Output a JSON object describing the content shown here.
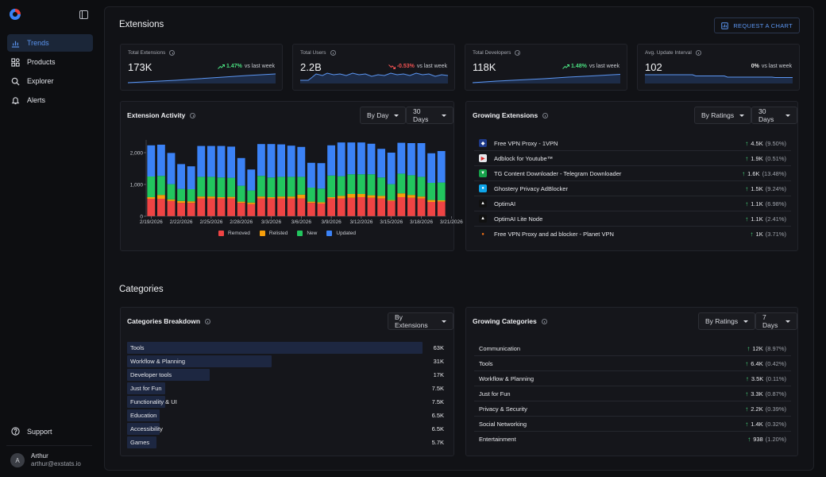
{
  "sidebar": {
    "nav": [
      {
        "label": "Trends",
        "icon": "trends-icon",
        "active": true
      },
      {
        "label": "Products",
        "icon": "products-icon",
        "active": false
      },
      {
        "label": "Explorer",
        "icon": "explorer-icon",
        "active": false
      },
      {
        "label": "Alerts",
        "icon": "bell-icon",
        "active": false
      }
    ],
    "support_label": "Support",
    "user": {
      "initial": "A",
      "name": "Arthur",
      "email": "arthur@exstats.io"
    }
  },
  "extensions_section": {
    "title": "Extensions",
    "request_chart_label": "REQUEST A CHART"
  },
  "stats": [
    {
      "label": "Total Extensions",
      "value": "173K",
      "delta": "1.47%",
      "delta_suffix": "vs last week",
      "direction": "up"
    },
    {
      "label": "Total Users",
      "value": "2.2B",
      "delta": "-0.53%",
      "delta_suffix": "vs last week",
      "direction": "down"
    },
    {
      "label": "Total Developers",
      "value": "118K",
      "delta": "1.48%",
      "delta_suffix": "vs last week",
      "direction": "up"
    },
    {
      "label": "Avg. Update Interval",
      "value": "102",
      "delta": "0%",
      "delta_suffix": "vs last week",
      "direction": "neutral"
    }
  ],
  "extension_activity": {
    "title": "Extension Activity",
    "granularity": "By Day",
    "range": "30 Days",
    "legend": [
      {
        "label": "Removed",
        "color": "#ef4444"
      },
      {
        "label": "Relisted",
        "color": "#f59e0b"
      },
      {
        "label": "New",
        "color": "#22c55e"
      },
      {
        "label": "Updated",
        "color": "#3b82f6"
      }
    ]
  },
  "chart_data": {
    "type": "bar",
    "stacked": true,
    "categories": [
      "2/19/2026",
      "2/20/2026",
      "2/21/2026",
      "2/22/2026",
      "2/23/2026",
      "2/24/2026",
      "2/25/2026",
      "2/26/2026",
      "2/27/2026",
      "2/28/2026",
      "3/1/2026",
      "3/2/2026",
      "3/3/2026",
      "3/4/2026",
      "3/5/2026",
      "3/6/2026",
      "3/7/2026",
      "3/8/2026",
      "3/9/2026",
      "3/10/2026",
      "3/11/2026",
      "3/12/2026",
      "3/13/2026",
      "3/14/2026",
      "3/15/2026",
      "3/16/2026",
      "3/17/2026",
      "3/18/2026",
      "3/19/2026",
      "3/20/2026"
    ],
    "tick_labels": [
      "2/19/2026",
      "2/22/2026",
      "2/25/2026",
      "2/28/2026",
      "3/3/2026",
      "3/6/2026",
      "3/9/2026",
      "3/12/2026",
      "3/15/2026",
      "3/18/2026",
      "3/21/2026"
    ],
    "y_ticks": [
      "0",
      "1,000",
      "2,000"
    ],
    "ylim": [
      0,
      2400
    ],
    "series": [
      {
        "name": "Removed",
        "color": "#ef4444",
        "values": [
          550,
          550,
          480,
          420,
          420,
          560,
          560,
          560,
          560,
          420,
          380,
          560,
          560,
          560,
          560,
          560,
          420,
          400,
          560,
          560,
          580,
          600,
          580,
          560,
          480,
          600,
          580,
          560,
          450,
          460
        ]
      },
      {
        "name": "Relisted",
        "color": "#f59e0b",
        "values": [
          50,
          120,
          50,
          60,
          50,
          60,
          60,
          40,
          50,
          40,
          50,
          60,
          40,
          60,
          60,
          120,
          40,
          40,
          40,
          80,
          120,
          100,
          80,
          80,
          30,
          120,
          90,
          60,
          60,
          40
        ]
      },
      {
        "name": "New",
        "color": "#22c55e",
        "values": [
          650,
          600,
          480,
          380,
          380,
          620,
          620,
          620,
          600,
          500,
          380,
          650,
          620,
          620,
          620,
          560,
          440,
          430,
          680,
          620,
          620,
          620,
          660,
          580,
          500,
          620,
          620,
          620,
          540,
          560
        ]
      },
      {
        "name": "Updated",
        "color": "#3b82f6",
        "values": [
          980,
          980,
          980,
          780,
          720,
          970,
          970,
          990,
          980,
          870,
          660,
          1000,
          1050,
          1020,
          980,
          940,
          780,
          800,
          950,
          1060,
          1000,
          1000,
          960,
          900,
          990,
          970,
          1010,
          1060,
          930,
          990
        ]
      }
    ]
  },
  "growing_extensions": {
    "title": "Growing Extensions",
    "sort": "By Ratings",
    "range": "30 Days",
    "items": [
      {
        "name": "Free VPN Proxy - 1VPN",
        "value": "4.5K",
        "pct": "(9.50%)",
        "icon": "shield-icon",
        "icon_bg": "#1e3a8a",
        "icon_fg": "#ffffff"
      },
      {
        "name": "Adblock for Youtube™",
        "value": "1.9K",
        "pct": "(0.51%)",
        "icon": "youtube-adblock-icon",
        "icon_bg": "#e5e7eb",
        "icon_fg": "#dc2626"
      },
      {
        "name": "TG Content Downloader - Telegram Downloader",
        "value": "1.6K",
        "pct": "(13.48%)",
        "icon": "downloader-icon",
        "icon_bg": "#16a34a",
        "icon_fg": "#ffffff"
      },
      {
        "name": "Ghostery Privacy AdBlocker",
        "value": "1.5K",
        "pct": "(9.24%)",
        "icon": "ghost-icon",
        "icon_bg": "#0ea5e9",
        "icon_fg": "#ffffff"
      },
      {
        "name": "OptimAI",
        "value": "1.1K",
        "pct": "(6.98%)",
        "icon": "optimai-icon",
        "icon_bg": "#111111",
        "icon_fg": "#ffffff"
      },
      {
        "name": "OptimAI Lite Node",
        "value": "1.1K",
        "pct": "(2.41%)",
        "icon": "optimai-lite-icon",
        "icon_bg": "#111111",
        "icon_fg": "#ffffff"
      },
      {
        "name": "Free VPN Proxy and ad blocker - Planet VPN",
        "value": "1K",
        "pct": "(3.71%)",
        "icon": "planet-icon",
        "icon_bg": "#15161b",
        "icon_fg": "#f97316"
      }
    ]
  },
  "categories_section": {
    "title": "Categories"
  },
  "categories_breakdown": {
    "title": "Categories Breakdown",
    "sort": "By Extensions",
    "items": [
      {
        "label": "Tools",
        "value": "63K",
        "share": 1.0
      },
      {
        "label": "Workflow & Planning",
        "value": "31K",
        "share": 0.49
      },
      {
        "label": "Developer tools",
        "value": "17K",
        "share": 0.28
      },
      {
        "label": "Just for Fun",
        "value": "7.5K",
        "share": 0.13
      },
      {
        "label": "Functionality & UI",
        "value": "7.5K",
        "share": 0.13
      },
      {
        "label": "Education",
        "value": "6.5K",
        "share": 0.11
      },
      {
        "label": "Accessibility",
        "value": "6.5K",
        "share": 0.11
      },
      {
        "label": "Games",
        "value": "5.7K",
        "share": 0.1
      }
    ]
  },
  "growing_categories": {
    "title": "Growing Categories",
    "sort": "By Ratings",
    "range": "7 Days",
    "items": [
      {
        "name": "Communication",
        "value": "12K",
        "pct": "(8.97%)"
      },
      {
        "name": "Tools",
        "value": "6.4K",
        "pct": "(0.42%)"
      },
      {
        "name": "Workflow & Planning",
        "value": "3.5K",
        "pct": "(0.11%)"
      },
      {
        "name": "Just for Fun",
        "value": "3.3K",
        "pct": "(0.87%)"
      },
      {
        "name": "Privacy & Security",
        "value": "2.2K",
        "pct": "(0.39%)"
      },
      {
        "name": "Social Networking",
        "value": "1.4K",
        "pct": "(0.32%)"
      },
      {
        "name": "Entertainment",
        "value": "938",
        "pct": "(1.20%)"
      }
    ]
  },
  "colors": {
    "accent": "#5b95f0",
    "up": "#4ade80",
    "down": "#f05252"
  }
}
